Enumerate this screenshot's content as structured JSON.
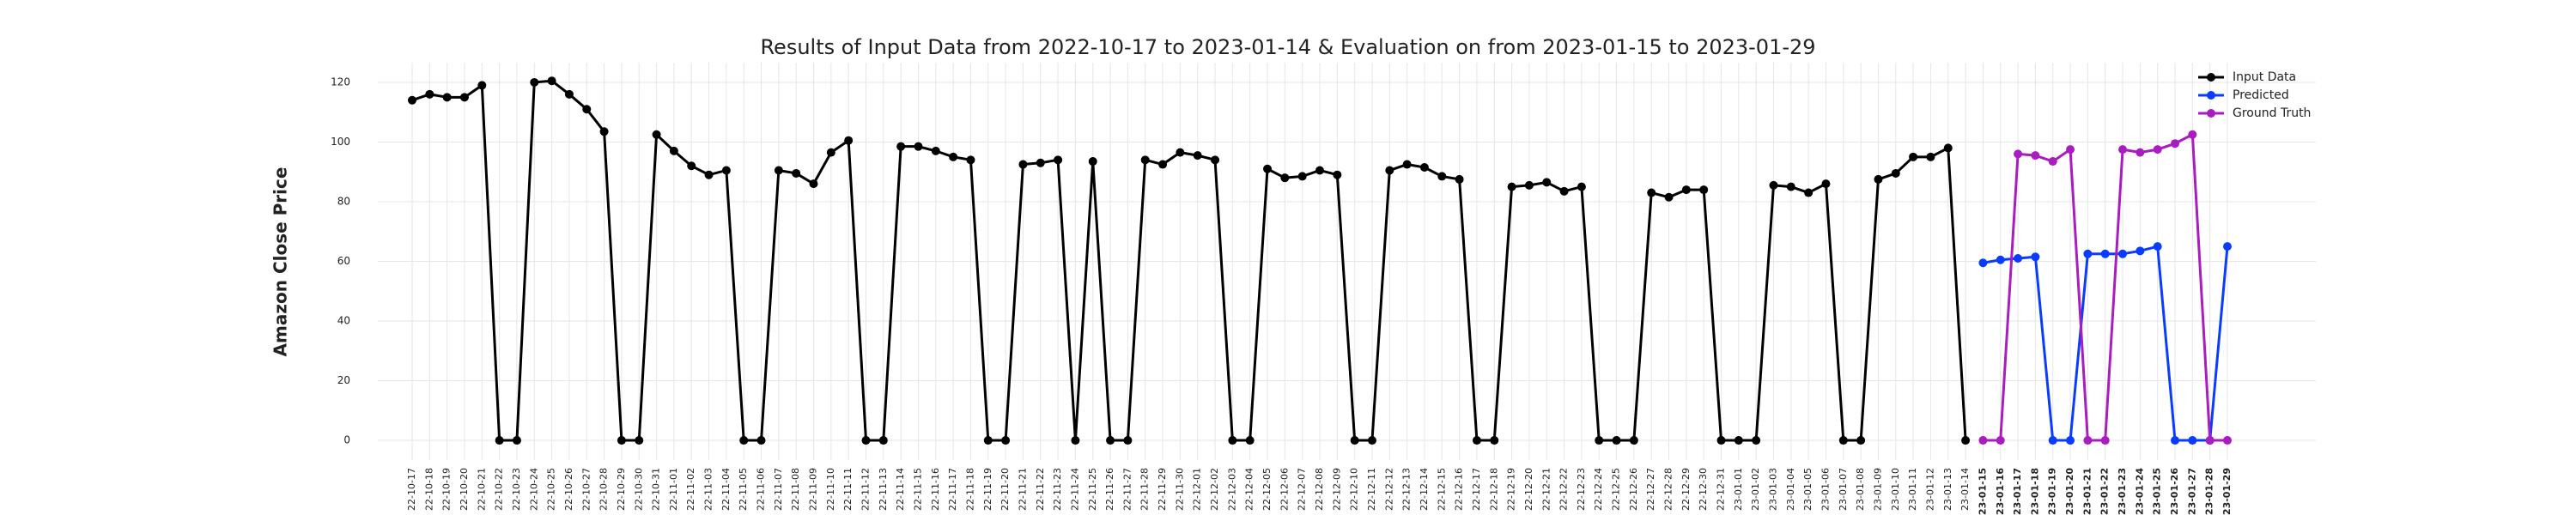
{
  "chart_data": {
    "type": "line",
    "title": "Results of Input Data from 2022-10-17 to 2023-01-14 & Evaluation on from 2023-01-15 to 2023-01-29",
    "ylabel": "Amazon Close Price",
    "categories": [
      "22-10-17",
      "22-10-18",
      "22-10-19",
      "22-10-20",
      "22-10-21",
      "22-10-22",
      "22-10-23",
      "22-10-24",
      "22-10-25",
      "22-10-26",
      "22-10-27",
      "22-10-28",
      "22-10-29",
      "22-10-30",
      "22-10-31",
      "22-11-01",
      "22-11-02",
      "22-11-03",
      "22-11-04",
      "22-11-05",
      "22-11-06",
      "22-11-07",
      "22-11-08",
      "22-11-09",
      "22-11-10",
      "22-11-11",
      "22-11-12",
      "22-11-13",
      "22-11-14",
      "22-11-15",
      "22-11-16",
      "22-11-17",
      "22-11-18",
      "22-11-19",
      "22-11-20",
      "22-11-21",
      "22-11-22",
      "22-11-23",
      "22-11-24",
      "22-11-25",
      "22-11-26",
      "22-11-27",
      "22-11-28",
      "22-11-29",
      "22-11-30",
      "22-12-01",
      "22-12-02",
      "22-12-03",
      "22-12-04",
      "22-12-05",
      "22-12-06",
      "22-12-07",
      "22-12-08",
      "22-12-09",
      "22-12-10",
      "22-12-11",
      "22-12-12",
      "22-12-13",
      "22-12-14",
      "22-12-15",
      "22-12-16",
      "22-12-17",
      "22-12-18",
      "22-12-19",
      "22-12-20",
      "22-12-21",
      "22-12-22",
      "22-12-23",
      "22-12-24",
      "22-12-25",
      "22-12-26",
      "22-12-27",
      "22-12-28",
      "22-12-29",
      "22-12-30",
      "22-12-31",
      "23-01-01",
      "23-01-02",
      "23-01-03",
      "23-01-04",
      "23-01-05",
      "23-01-06",
      "23-01-07",
      "23-01-08",
      "23-01-09",
      "23-01-10",
      "23-01-11",
      "23-01-12",
      "23-01-13",
      "23-01-14",
      "23-01-15",
      "23-01-16",
      "23-01-17",
      "23-01-18",
      "23-01-19",
      "23-01-20",
      "23-01-21",
      "23-01-22",
      "23-01-23",
      "23-01-24",
      "23-01-25",
      "23-01-26",
      "23-01-27",
      "23-01-28",
      "23-01-29"
    ],
    "series": [
      {
        "name": "Input Data",
        "color": "#000000",
        "values": [
          114,
          116,
          115,
          115,
          119,
          0,
          0,
          120,
          120.5,
          116,
          111,
          103.5,
          0,
          0,
          102.5,
          97,
          92,
          89,
          90.5,
          0,
          0,
          90.5,
          89.5,
          86,
          96.5,
          100.5,
          0,
          0,
          98.5,
          98.5,
          97,
          95,
          94,
          0,
          0,
          92.5,
          93,
          94,
          0,
          93.5,
          0,
          0,
          94,
          92.5,
          96.5,
          95.5,
          94,
          0,
          0,
          91,
          88,
          88.5,
          90.5,
          89,
          0,
          0,
          90.5,
          92.5,
          91.5,
          88.5,
          87.5,
          0,
          0,
          85,
          85.5,
          86.5,
          83.5,
          85,
          0,
          0,
          0,
          83,
          81.5,
          84,
          84,
          0,
          0,
          0,
          85.5,
          85,
          83,
          86,
          0,
          0,
          87.5,
          89.5,
          95,
          95,
          98,
          0,
          null,
          null,
          null,
          null,
          null,
          null,
          null,
          null,
          null,
          null,
          null,
          null,
          null,
          null,
          null
        ]
      },
      {
        "name": "Predicted",
        "color": "#0a3cff",
        "values": [
          null,
          null,
          null,
          null,
          null,
          null,
          null,
          null,
          null,
          null,
          null,
          null,
          null,
          null,
          null,
          null,
          null,
          null,
          null,
          null,
          null,
          null,
          null,
          null,
          null,
          null,
          null,
          null,
          null,
          null,
          null,
          null,
          null,
          null,
          null,
          null,
          null,
          null,
          null,
          null,
          null,
          null,
          null,
          null,
          null,
          null,
          null,
          null,
          null,
          null,
          null,
          null,
          null,
          null,
          null,
          null,
          null,
          null,
          null,
          null,
          null,
          null,
          null,
          null,
          null,
          null,
          null,
          null,
          null,
          null,
          null,
          null,
          null,
          null,
          null,
          null,
          null,
          null,
          null,
          null,
          null,
          null,
          null,
          null,
          null,
          null,
          null,
          null,
          null,
          null,
          59.5,
          60.5,
          61,
          61.5,
          0,
          0,
          62.5,
          62.5,
          62.5,
          63.5,
          65,
          0,
          0,
          0,
          65
        ]
      },
      {
        "name": "Ground Truth",
        "color": "#a91cbf",
        "values": [
          null,
          null,
          null,
          null,
          null,
          null,
          null,
          null,
          null,
          null,
          null,
          null,
          null,
          null,
          null,
          null,
          null,
          null,
          null,
          null,
          null,
          null,
          null,
          null,
          null,
          null,
          null,
          null,
          null,
          null,
          null,
          null,
          null,
          null,
          null,
          null,
          null,
          null,
          null,
          null,
          null,
          null,
          null,
          null,
          null,
          null,
          null,
          null,
          null,
          null,
          null,
          null,
          null,
          null,
          null,
          null,
          null,
          null,
          null,
          null,
          null,
          null,
          null,
          null,
          null,
          null,
          null,
          null,
          null,
          null,
          null,
          null,
          null,
          null,
          null,
          null,
          null,
          null,
          null,
          null,
          null,
          null,
          null,
          null,
          null,
          null,
          null,
          null,
          null,
          null,
          0,
          0,
          96,
          95.5,
          93.5,
          97.5,
          0,
          0,
          97.5,
          96.5,
          97.5,
          99.5,
          102.5,
          0,
          0
        ]
      }
    ],
    "ylim": [
      -6.6,
      126.6
    ],
    "yticks": [
      0,
      20,
      40,
      60,
      80,
      100,
      120
    ],
    "grid": true,
    "legend": "upper right"
  }
}
